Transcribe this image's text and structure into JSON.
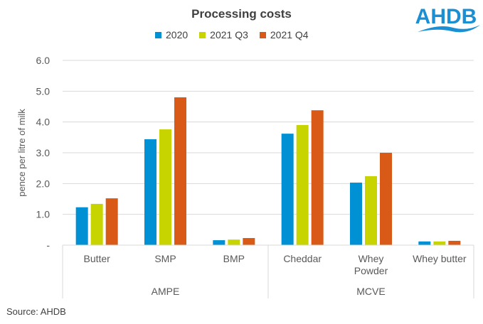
{
  "chart_data": {
    "type": "bar",
    "title": "Processing costs",
    "ylabel": "pence per litre of milk",
    "xlabel": "",
    "ylim": [
      0,
      6
    ],
    "yticks": [
      "-",
      "1.0",
      "2.0",
      "3.0",
      "4.0",
      "5.0",
      "6.0"
    ],
    "grid": true,
    "legend_position": "top",
    "categories": [
      "Butter",
      "SMP",
      "BMP",
      "Cheddar",
      "Whey Powder",
      "Whey butter"
    ],
    "category_lines": [
      [
        "Butter"
      ],
      [
        "SMP"
      ],
      [
        "BMP"
      ],
      [
        "Cheddar"
      ],
      [
        "Whey",
        "Powder"
      ],
      [
        "Whey butter"
      ]
    ],
    "groups": [
      {
        "label": "AMPE",
        "count": 3
      },
      {
        "label": "MCVE",
        "count": 3
      }
    ],
    "series": [
      {
        "name": "2020",
        "color": "#0090d4",
        "values": [
          1.23,
          3.44,
          0.16,
          3.62,
          2.03,
          0.12
        ]
      },
      {
        "name": "2021 Q3",
        "color": "#c8d400",
        "values": [
          1.34,
          3.76,
          0.18,
          3.9,
          2.24,
          0.12
        ]
      },
      {
        "name": "2021 Q4",
        "color": "#d95a17",
        "values": [
          1.52,
          4.8,
          0.23,
          4.38,
          3.0,
          0.14
        ]
      }
    ]
  },
  "logo": {
    "text": "AHDB",
    "color": "#1a8fd4"
  },
  "source": "Source: AHDB"
}
